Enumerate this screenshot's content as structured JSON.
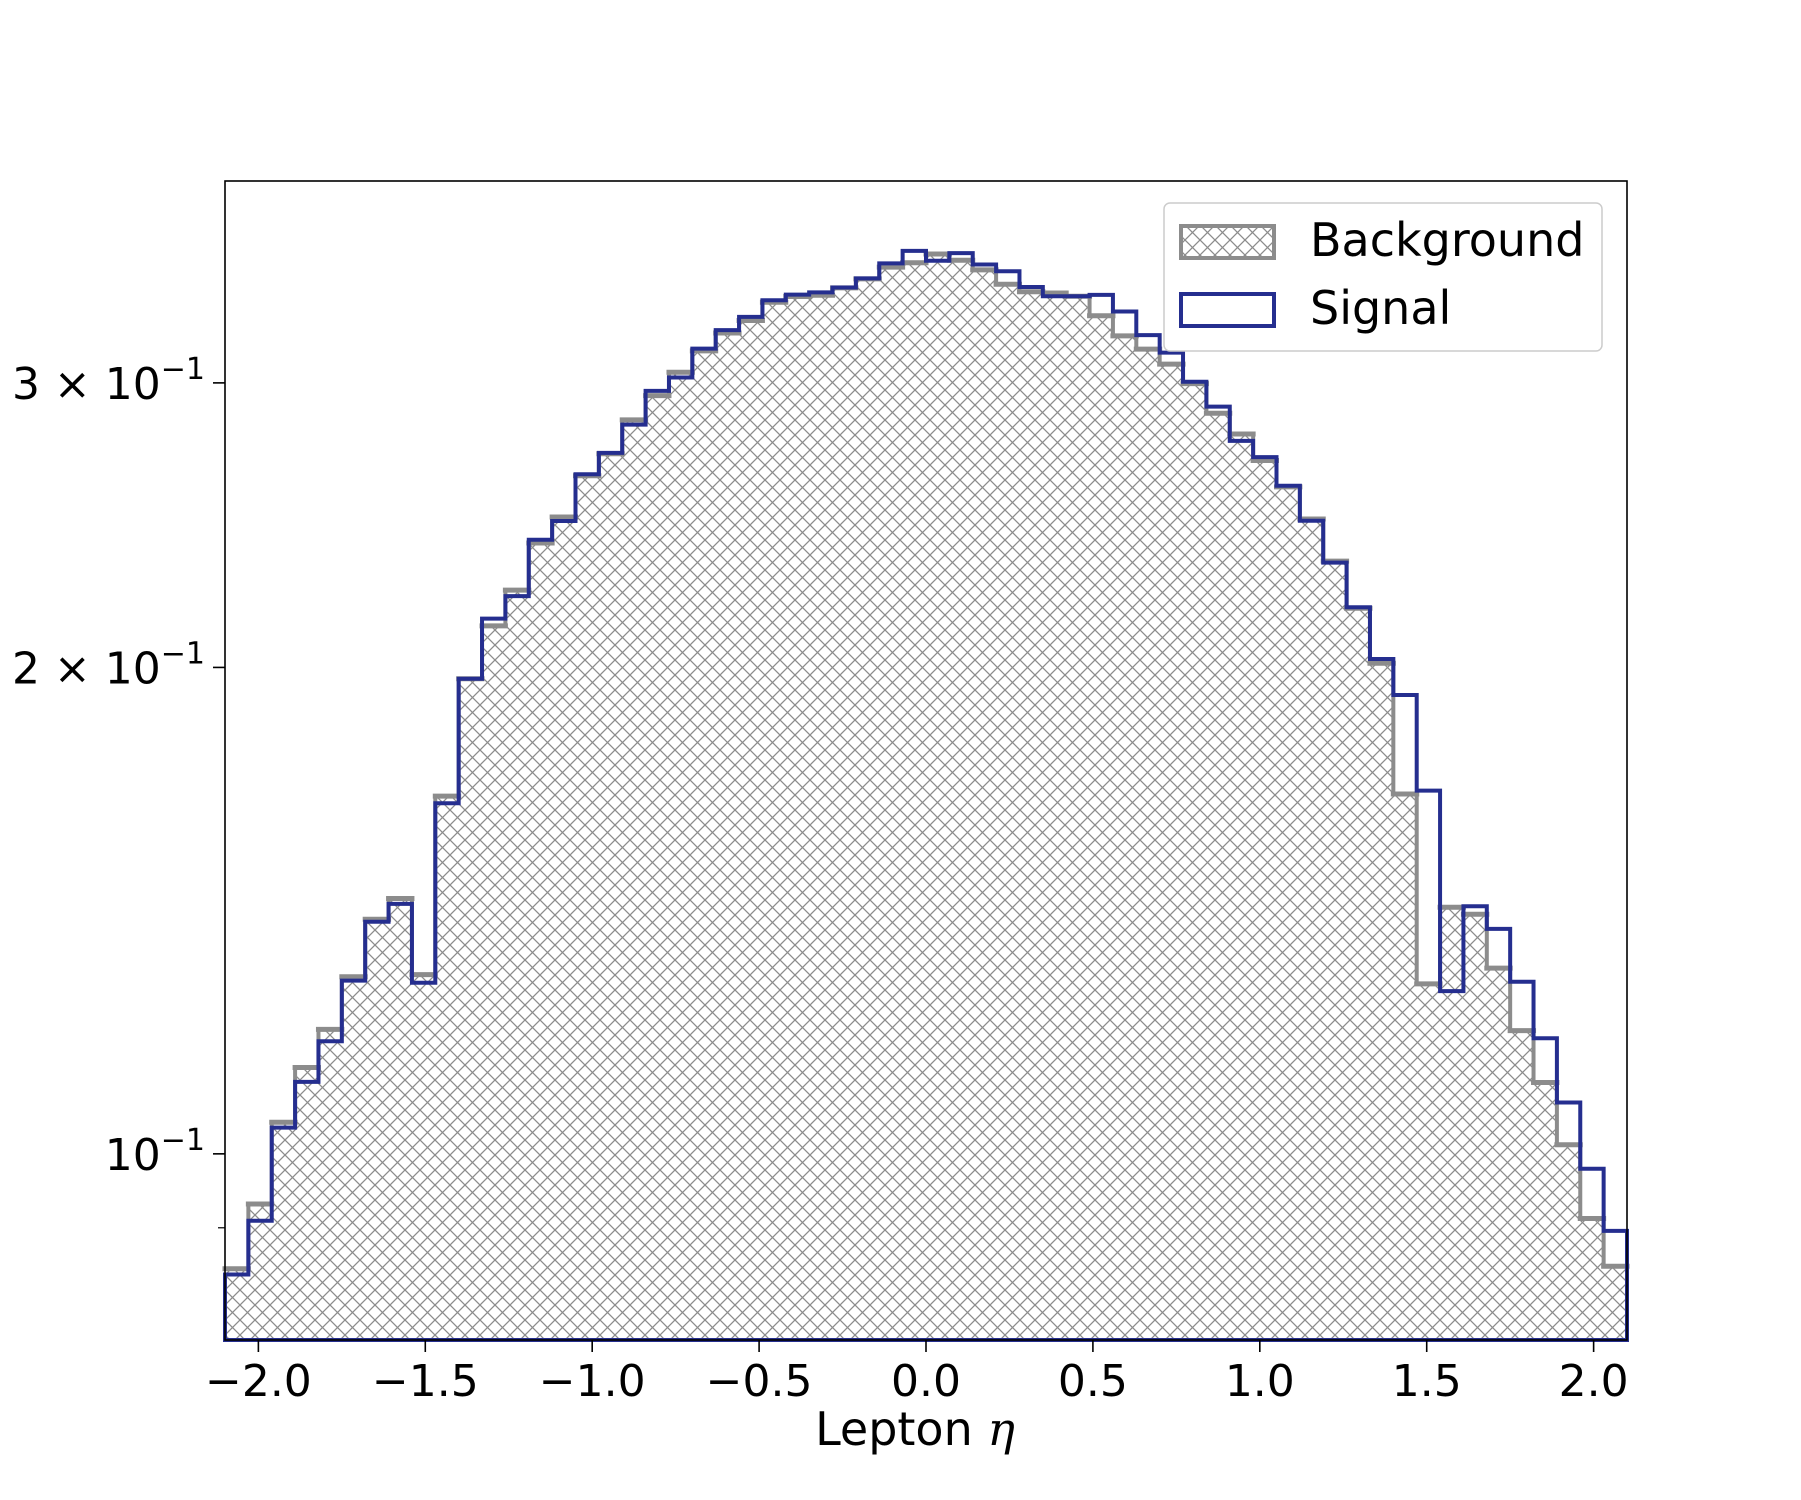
{
  "chart_data": {
    "type": "histogram",
    "xlabel": "Lepton",
    "xlabel_symbol": "η",
    "ylabel": "",
    "xlim": [
      -2.1,
      2.1
    ],
    "ylim": [
      0.0767,
      0.4
    ],
    "yscale": "log",
    "grid": false,
    "legend": "top-right",
    "x_ticks": [
      {
        "value": -2.0,
        "label": "−2.0"
      },
      {
        "value": -1.5,
        "label": "−1.5"
      },
      {
        "value": -1.0,
        "label": "−1.0"
      },
      {
        "value": -0.5,
        "label": "−0.5"
      },
      {
        "value": 0.0,
        "label": "0.0"
      },
      {
        "value": 0.5,
        "label": "0.5"
      },
      {
        "value": 1.0,
        "label": "1.0"
      },
      {
        "value": 1.5,
        "label": "1.5"
      },
      {
        "value": 2.0,
        "label": "2.0"
      }
    ],
    "y_ticks": [
      {
        "value": 0.1,
        "mantissa": "",
        "base": "10",
        "exp": "−1"
      },
      {
        "value": 0.2,
        "mantissa": "2 × ",
        "base": "10",
        "exp": "−1"
      },
      {
        "value": 0.3,
        "mantissa": "3 × ",
        "base": "10",
        "exp": "−1"
      }
    ],
    "y_minor_ticks": [
      0.09
    ],
    "bin_edges_range": [
      -2.1,
      2.1
    ],
    "n_bins": 60,
    "series": [
      {
        "name": "Background",
        "style": "hatched",
        "color": "#8c8c8c",
        "values": [
          0.0849,
          0.0931,
          0.1046,
          0.1131,
          0.1194,
          0.1287,
          0.1397,
          0.1439,
          0.1291,
          0.1665,
          0.1968,
          0.2122,
          0.2233,
          0.2388,
          0.2478,
          0.2628,
          0.2712,
          0.2846,
          0.2946,
          0.3046,
          0.314,
          0.3221,
          0.3279,
          0.3365,
          0.3393,
          0.3399,
          0.3435,
          0.3479,
          0.3538,
          0.356,
          0.3605,
          0.3573,
          0.3524,
          0.3453,
          0.3416,
          0.341,
          0.3394,
          0.3301,
          0.3208,
          0.3148,
          0.3081,
          0.2997,
          0.2873,
          0.2789,
          0.2686,
          0.2587,
          0.2471,
          0.2327,
          0.2176,
          0.2012,
          0.167,
          0.1274,
          0.1421,
          0.1407,
          0.1303,
          0.1192,
          0.1107,
          0.1013,
          0.0912,
          0.0852
        ]
      },
      {
        "name": "Signal",
        "style": "step",
        "color": "#252e8f",
        "values": [
          0.0842,
          0.0909,
          0.1038,
          0.1108,
          0.1174,
          0.128,
          0.1392,
          0.1428,
          0.1276,
          0.1648,
          0.1968,
          0.2144,
          0.2214,
          0.2399,
          0.2464,
          0.2634,
          0.2715,
          0.2827,
          0.2966,
          0.3023,
          0.315,
          0.3234,
          0.3296,
          0.3375,
          0.3402,
          0.3413,
          0.3437,
          0.3482,
          0.3557,
          0.3621,
          0.357,
          0.3609,
          0.3551,
          0.3517,
          0.3439,
          0.3394,
          0.3394,
          0.3401,
          0.3321,
          0.3211,
          0.3132,
          0.3005,
          0.29,
          0.2762,
          0.2699,
          0.2591,
          0.2465,
          0.2322,
          0.2179,
          0.2024,
          0.1923,
          0.1678,
          0.1261,
          0.1423,
          0.1378,
          0.1278,
          0.1179,
          0.1076,
          0.0979,
          0.0896
        ]
      }
    ]
  }
}
